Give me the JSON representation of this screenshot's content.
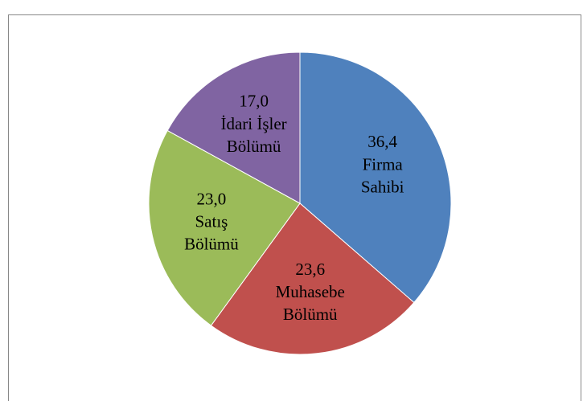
{
  "chart_data": {
    "type": "pie",
    "categories": [
      "Firma Sahibi",
      "Muhasebe Bölümü",
      "Satış Bölümü",
      "İdari İşler Bölümü"
    ],
    "values": [
      36.4,
      23.6,
      23.0,
      17.0
    ],
    "value_labels": [
      "36,4",
      "23,6",
      "23,0",
      "17,0"
    ],
    "colors": [
      "#4f81bd",
      "#c0504d",
      "#9bbb59",
      "#8064a2"
    ]
  }
}
